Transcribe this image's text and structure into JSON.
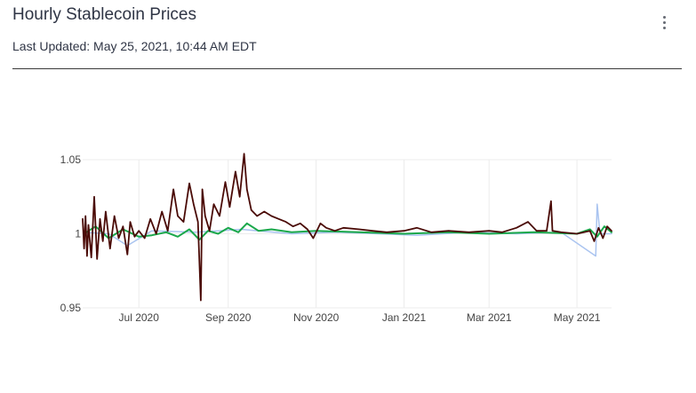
{
  "header": {
    "title": "Hourly Stablecoin Prices",
    "last_updated": "Last Updated: May 25, 2021, 10:44 AM EDT",
    "menu_icon": "vertical-ellipsis-icon"
  },
  "chart_data": {
    "type": "line",
    "title": "",
    "xlabel": "",
    "ylabel": "",
    "xlim": [
      "2020-05-23",
      "2021-05-25"
    ],
    "ylim": [
      0.95,
      1.05
    ],
    "x_ticks": [
      "Jul 2020",
      "Sep 2020",
      "Nov 2020",
      "Jan 2021",
      "Mar 2021",
      "May 2021"
    ],
    "y_ticks": [
      "0.95",
      "1",
      "1.05"
    ],
    "grid": true,
    "legend": "none",
    "series": [
      {
        "color": "#aac4f0",
        "points": [
          [
            "2020-05-24",
            1.001
          ],
          [
            "2020-06-10",
            1.0
          ],
          [
            "2020-06-23",
            0.992
          ],
          [
            "2020-07-10",
            1.002
          ],
          [
            "2020-08-10",
            1.001
          ],
          [
            "2020-09-10",
            1.003
          ],
          [
            "2020-10-15",
            1.0
          ],
          [
            "2020-11-15",
            1.001
          ],
          [
            "2020-12-15",
            1.0
          ],
          [
            "2021-01-10",
            0.999
          ],
          [
            "2021-02-15",
            1.001
          ],
          [
            "2021-03-20",
            1.0
          ],
          [
            "2021-04-20",
            1.001
          ],
          [
            "2021-05-14",
            0.985
          ],
          [
            "2021-05-15",
            1.02
          ],
          [
            "2021-05-17",
            1.0
          ],
          [
            "2021-05-25",
            1.0
          ]
        ]
      },
      {
        "color": "#1aa84b",
        "points": [
          [
            "2020-05-24",
            1.0
          ],
          [
            "2020-06-01",
            1.005
          ],
          [
            "2020-06-10",
            0.997
          ],
          [
            "2020-06-20",
            1.003
          ],
          [
            "2020-07-01",
            0.998
          ],
          [
            "2020-07-10",
            0.999
          ],
          [
            "2020-07-20",
            1.001
          ],
          [
            "2020-07-28",
            0.998
          ],
          [
            "2020-08-05",
            1.003
          ],
          [
            "2020-08-12",
            0.996
          ],
          [
            "2020-08-18",
            1.002
          ],
          [
            "2020-08-25",
            1.0
          ],
          [
            "2020-09-01",
            1.004
          ],
          [
            "2020-09-08",
            1.001
          ],
          [
            "2020-09-14",
            1.007
          ],
          [
            "2020-09-22",
            1.002
          ],
          [
            "2020-10-01",
            1.003
          ],
          [
            "2020-10-15",
            1.001
          ],
          [
            "2020-11-01",
            1.002
          ],
          [
            "2020-12-01",
            1.001
          ],
          [
            "2021-01-01",
            1.0
          ],
          [
            "2021-02-01",
            1.001
          ],
          [
            "2021-03-01",
            1.0
          ],
          [
            "2021-04-01",
            1.001
          ],
          [
            "2021-05-01",
            1.0
          ],
          [
            "2021-05-10",
            1.003
          ],
          [
            "2021-05-15",
            0.998
          ],
          [
            "2021-05-20",
            1.005
          ],
          [
            "2021-05-25",
            1.001
          ]
        ]
      },
      {
        "color": "#4a0a06",
        "points": [
          [
            "2020-05-23",
            1.01
          ],
          [
            "2020-05-24",
            0.99
          ],
          [
            "2020-05-25",
            1.012
          ],
          [
            "2020-05-26",
            0.985
          ],
          [
            "2020-05-27",
            1.006
          ],
          [
            "2020-05-29",
            0.984
          ],
          [
            "2020-05-31",
            1.025
          ],
          [
            "2020-06-02",
            0.983
          ],
          [
            "2020-06-04",
            1.01
          ],
          [
            "2020-06-06",
            0.995
          ],
          [
            "2020-06-08",
            1.015
          ],
          [
            "2020-06-11",
            0.99
          ],
          [
            "2020-06-14",
            1.012
          ],
          [
            "2020-06-17",
            0.997
          ],
          [
            "2020-06-20",
            1.005
          ],
          [
            "2020-06-23",
            0.986
          ],
          [
            "2020-06-25",
            1.008
          ],
          [
            "2020-06-28",
            0.998
          ],
          [
            "2020-07-01",
            1.002
          ],
          [
            "2020-07-05",
            0.997
          ],
          [
            "2020-07-09",
            1.01
          ],
          [
            "2020-07-13",
            1.0
          ],
          [
            "2020-07-17",
            1.015
          ],
          [
            "2020-07-21",
            1.002
          ],
          [
            "2020-07-25",
            1.03
          ],
          [
            "2020-07-28",
            1.012
          ],
          [
            "2020-08-01",
            1.008
          ],
          [
            "2020-08-05",
            1.034
          ],
          [
            "2020-08-08",
            1.02
          ],
          [
            "2020-08-11",
            1.008
          ],
          [
            "2020-08-13",
            0.955
          ],
          [
            "2020-08-14",
            1.03
          ],
          [
            "2020-08-16",
            1.012
          ],
          [
            "2020-08-19",
            1.002
          ],
          [
            "2020-08-22",
            1.02
          ],
          [
            "2020-08-26",
            1.012
          ],
          [
            "2020-08-30",
            1.035
          ],
          [
            "2020-09-02",
            1.018
          ],
          [
            "2020-09-06",
            1.042
          ],
          [
            "2020-09-09",
            1.025
          ],
          [
            "2020-09-12",
            1.054
          ],
          [
            "2020-09-14",
            1.03
          ],
          [
            "2020-09-17",
            1.016
          ],
          [
            "2020-09-21",
            1.012
          ],
          [
            "2020-09-26",
            1.015
          ],
          [
            "2020-10-01",
            1.012
          ],
          [
            "2020-10-06",
            1.01
          ],
          [
            "2020-10-11",
            1.008
          ],
          [
            "2020-10-16",
            1.005
          ],
          [
            "2020-10-21",
            1.007
          ],
          [
            "2020-10-26",
            1.003
          ],
          [
            "2020-10-30",
            0.997
          ],
          [
            "2020-11-04",
            1.007
          ],
          [
            "2020-11-08",
            1.004
          ],
          [
            "2020-11-14",
            1.002
          ],
          [
            "2020-11-20",
            1.004
          ],
          [
            "2020-12-01",
            1.003
          ],
          [
            "2020-12-10",
            1.002
          ],
          [
            "2020-12-20",
            1.001
          ],
          [
            "2021-01-01",
            1.002
          ],
          [
            "2021-01-10",
            1.004
          ],
          [
            "2021-01-20",
            1.001
          ],
          [
            "2021-02-01",
            1.002
          ],
          [
            "2021-02-15",
            1.001
          ],
          [
            "2021-03-01",
            1.002
          ],
          [
            "2021-03-10",
            1.001
          ],
          [
            "2021-03-20",
            1.004
          ],
          [
            "2021-03-28",
            1.008
          ],
          [
            "2021-04-03",
            1.002
          ],
          [
            "2021-04-10",
            1.002
          ],
          [
            "2021-04-13",
            1.022
          ],
          [
            "2021-04-14",
            1.002
          ],
          [
            "2021-04-20",
            1.001
          ],
          [
            "2021-05-01",
            1.0
          ],
          [
            "2021-05-10",
            1.002
          ],
          [
            "2021-05-13",
            0.995
          ],
          [
            "2021-05-16",
            1.004
          ],
          [
            "2021-05-19",
            0.997
          ],
          [
            "2021-05-22",
            1.005
          ],
          [
            "2021-05-25",
            1.002
          ]
        ]
      }
    ]
  }
}
